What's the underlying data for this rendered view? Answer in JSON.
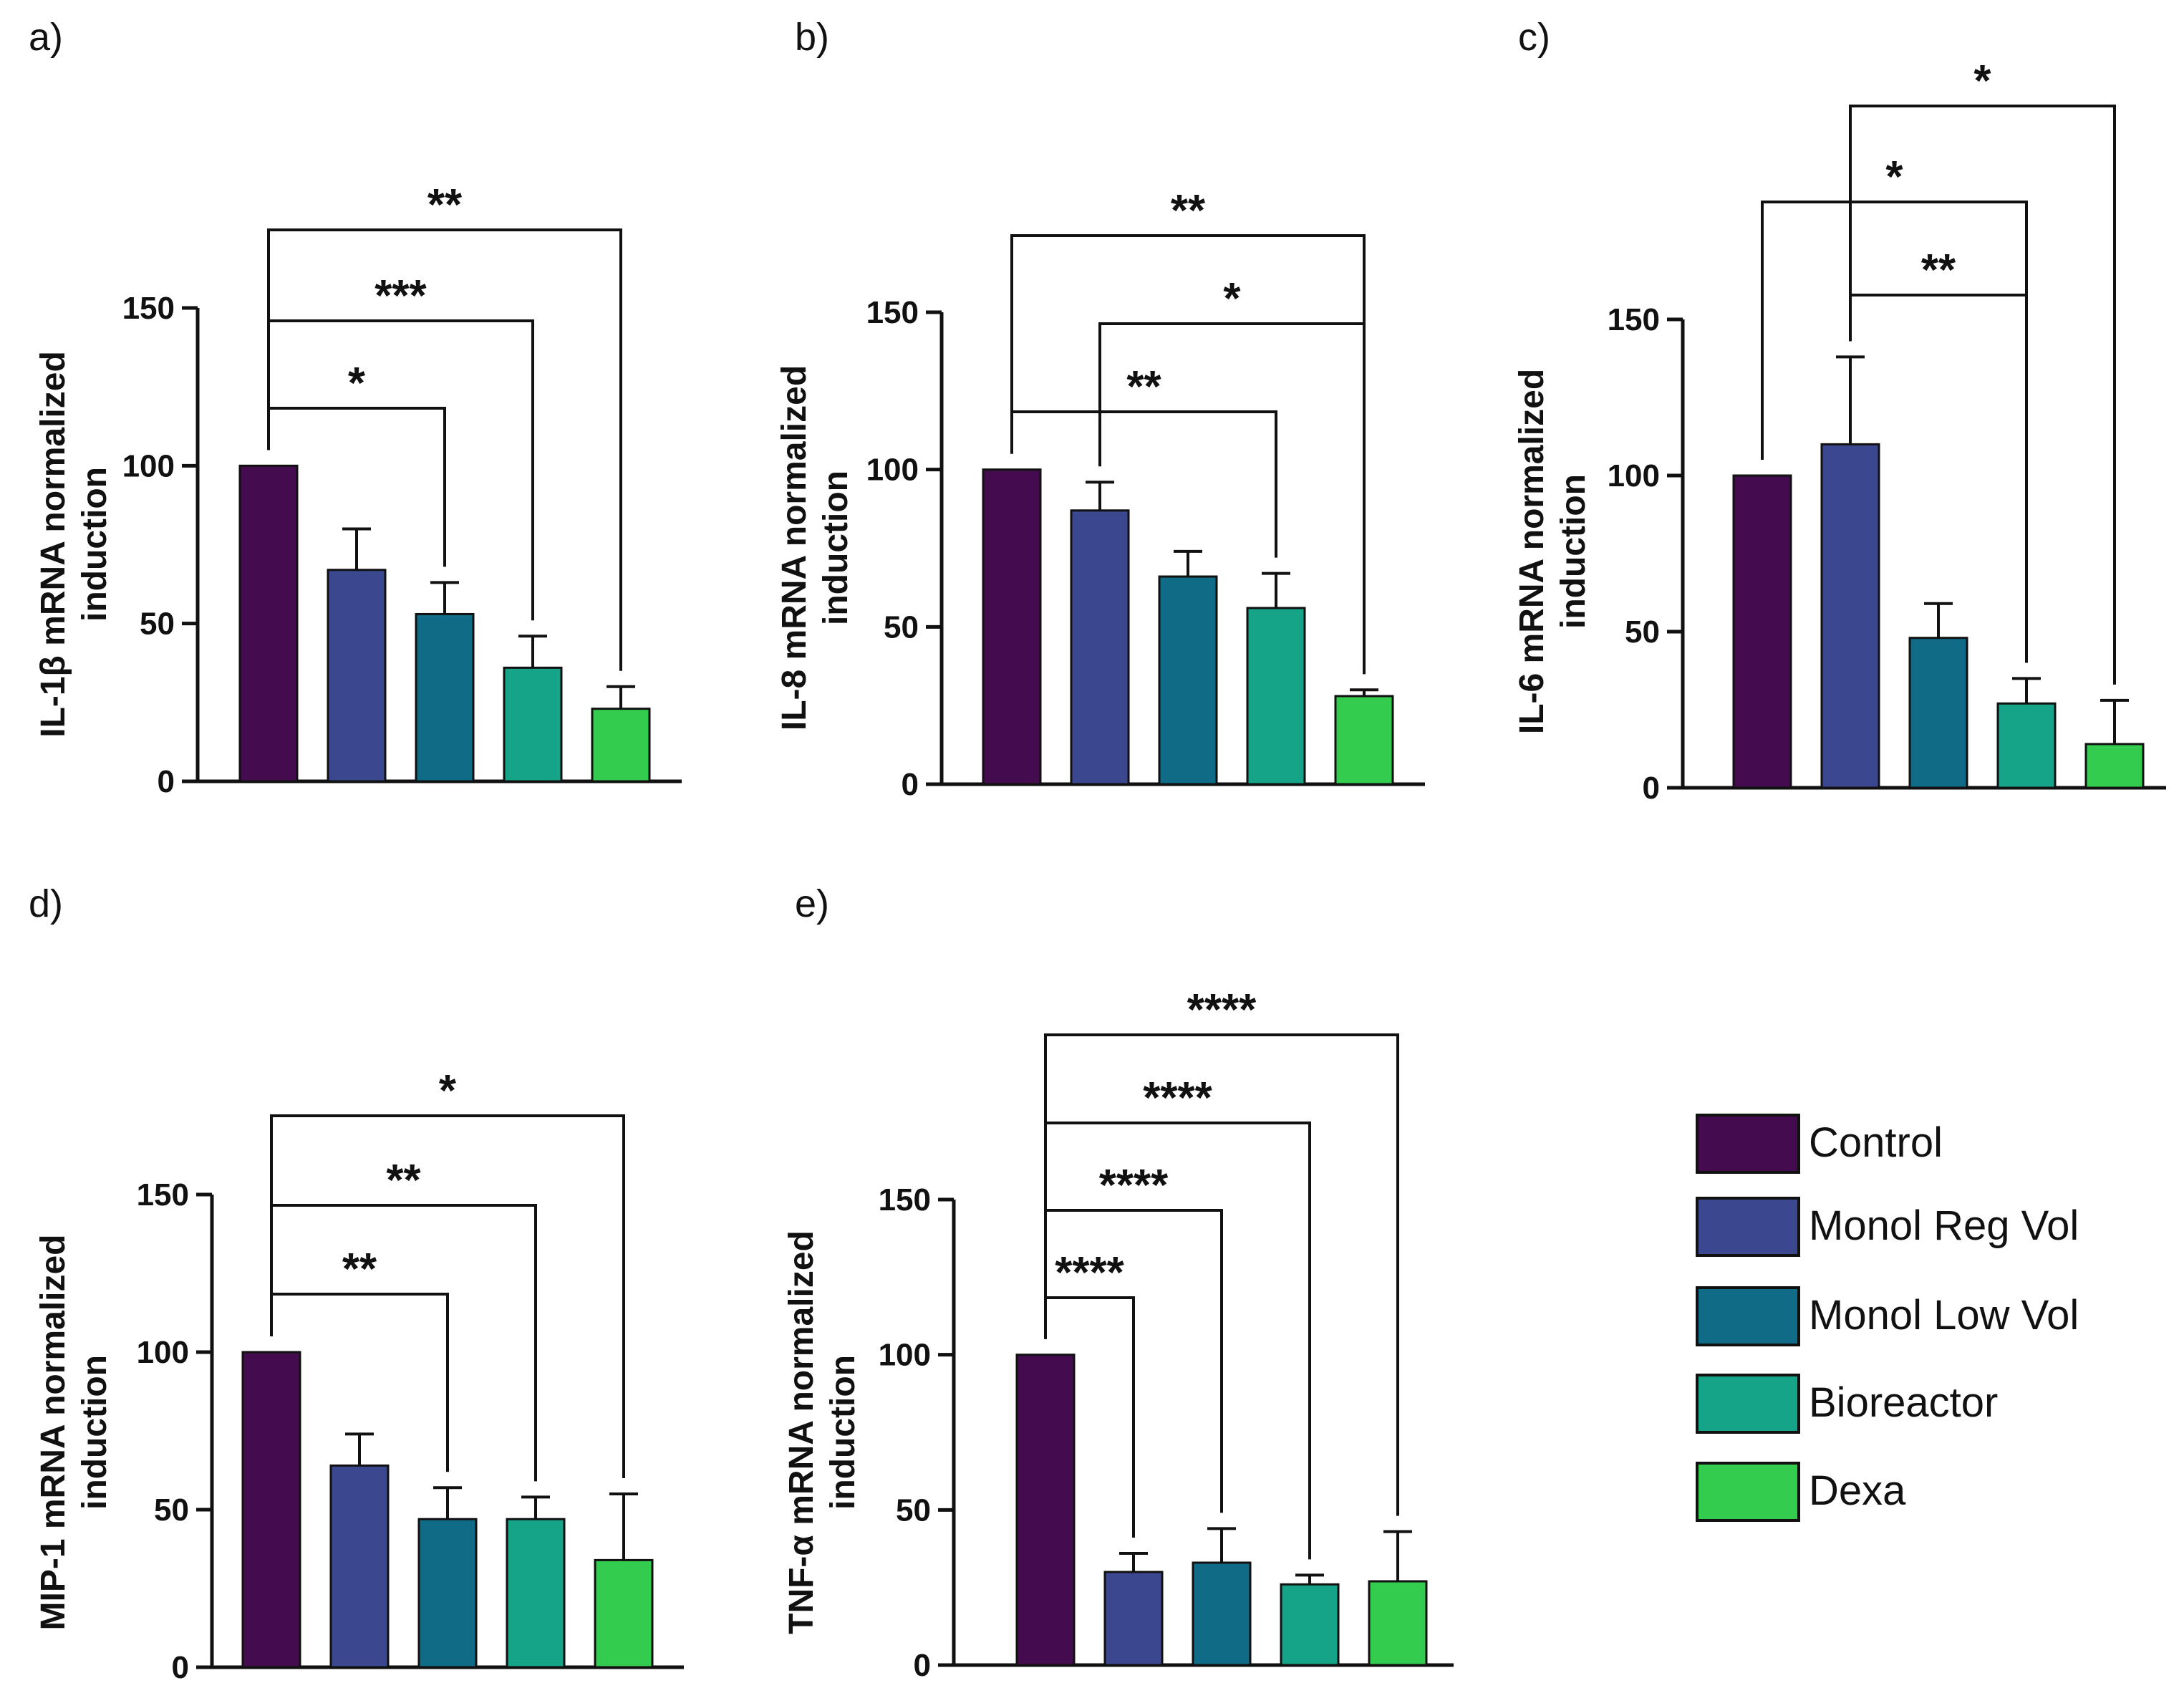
{
  "colors": {
    "Control": "#450b4f",
    "Monol Reg Vol": "#3b4890",
    "Monol Low Vol": "#0f6b86",
    "Bioreactor": "#16a489",
    "Dexa": "#33cc4e"
  },
  "legend": {
    "items": [
      "Control",
      "Monol Reg Vol",
      "Monol Low Vol",
      "Bioreactor",
      "Dexa"
    ]
  },
  "chart_data": [
    {
      "panel": "a)",
      "type": "bar",
      "ylabel_lines": [
        "IL-1β mRNA normalized",
        "induction"
      ],
      "categories": [
        "Control",
        "Monol Reg Vol",
        "Monol Low Vol",
        "Bioreactor",
        "Dexa"
      ],
      "values": [
        100,
        67,
        53,
        36,
        23
      ],
      "errors": [
        0,
        13,
        10,
        10,
        7
      ],
      "ylim": [
        0,
        150
      ],
      "yticks": [
        0,
        50,
        100,
        150
      ],
      "significance": [
        {
          "from": 0,
          "to": 2,
          "label": "*"
        },
        {
          "from": 0,
          "to": 3,
          "label": "***"
        },
        {
          "from": 0,
          "to": 4,
          "label": "**"
        }
      ]
    },
    {
      "panel": "b)",
      "type": "bar",
      "ylabel_lines": [
        "IL-8 mRNA normalized",
        "induction"
      ],
      "categories": [
        "Control",
        "Monol Reg Vol",
        "Monol Low Vol",
        "Bioreactor",
        "Dexa"
      ],
      "values": [
        100,
        87,
        66,
        56,
        28
      ],
      "errors": [
        0,
        9,
        8,
        11,
        2
      ],
      "ylim": [
        0,
        150
      ],
      "yticks": [
        0,
        50,
        100,
        150
      ],
      "significance": [
        {
          "from": 0,
          "to": 3,
          "label": "**"
        },
        {
          "from": 1,
          "to": 4,
          "label": "*"
        },
        {
          "from": 0,
          "to": 4,
          "label": "**"
        }
      ]
    },
    {
      "panel": "c)",
      "type": "bar",
      "ylabel_lines": [
        "IL-6 mRNA normalized",
        "induction"
      ],
      "categories": [
        "Control",
        "Monol Reg Vol",
        "Monol Low Vol",
        "Bioreactor",
        "Dexa"
      ],
      "values": [
        100,
        110,
        48,
        27,
        14
      ],
      "errors": [
        0,
        28,
        11,
        8,
        14
      ],
      "ylim": [
        0,
        150
      ],
      "yticks": [
        0,
        50,
        100,
        150
      ],
      "significance": [
        {
          "from": 1,
          "to": 3,
          "label": "**"
        },
        {
          "from": 0,
          "to": 3,
          "label": "*"
        },
        {
          "from": 1,
          "to": 4,
          "label": "*"
        }
      ]
    },
    {
      "panel": "d)",
      "type": "bar",
      "ylabel_lines": [
        "MIP-1 mRNA normalized",
        "induction"
      ],
      "categories": [
        "Control",
        "Monol Reg Vol",
        "Monol Low Vol",
        "Bioreactor",
        "Dexa"
      ],
      "values": [
        100,
        64,
        47,
        47,
        34
      ],
      "errors": [
        0,
        10,
        10,
        7,
        21
      ],
      "ylim": [
        0,
        150
      ],
      "yticks": [
        0,
        50,
        100,
        150
      ],
      "significance": [
        {
          "from": 0,
          "to": 2,
          "label": "**"
        },
        {
          "from": 0,
          "to": 3,
          "label": "**"
        },
        {
          "from": 0,
          "to": 4,
          "label": "*"
        }
      ]
    },
    {
      "panel": "e)",
      "type": "bar",
      "ylabel_lines": [
        "TNF-α mRNA normalized",
        "induction"
      ],
      "categories": [
        "Control",
        "Monol Reg Vol",
        "Monol Low Vol",
        "Bioreactor",
        "Dexa"
      ],
      "values": [
        100,
        30,
        33,
        26,
        27
      ],
      "errors": [
        0,
        6,
        11,
        3,
        16
      ],
      "ylim": [
        0,
        150
      ],
      "yticks": [
        0,
        50,
        100,
        150
      ],
      "significance": [
        {
          "from": 0,
          "to": 1,
          "label": "****"
        },
        {
          "from": 0,
          "to": 2,
          "label": "****"
        },
        {
          "from": 0,
          "to": 3,
          "label": "****"
        },
        {
          "from": 0,
          "to": 4,
          "label": "****"
        }
      ]
    }
  ]
}
